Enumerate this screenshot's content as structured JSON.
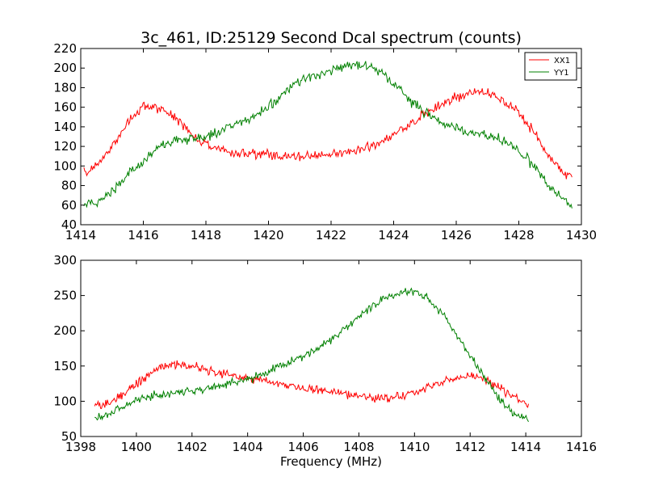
{
  "chart_data": [
    {
      "type": "line",
      "title": "3c_461, ID:25129 Second Dcal spectrum (counts)",
      "xlabel": "",
      "ylabel": "",
      "xlim": [
        1414,
        1430
      ],
      "ylim": [
        40,
        220
      ],
      "xticks": [
        1414,
        1416,
        1418,
        1420,
        1422,
        1424,
        1426,
        1428,
        1430
      ],
      "yticks": [
        40,
        60,
        80,
        100,
        120,
        140,
        160,
        180,
        200,
        220
      ],
      "x_range": [
        1414.1,
        1429.7
      ],
      "noise": 5,
      "legend": "top-right",
      "grid": false,
      "series": [
        {
          "name": "XX1",
          "color": "#ff0000",
          "points": [
            [
              1414.1,
              93
            ],
            [
              1414.6,
              103
            ],
            [
              1415.0,
              120
            ],
            [
              1415.5,
              145
            ],
            [
              1416.0,
              160
            ],
            [
              1416.3,
              162
            ],
            [
              1416.8,
              155
            ],
            [
              1417.3,
              140
            ],
            [
              1417.8,
              125
            ],
            [
              1418.3,
              117
            ],
            [
              1419.0,
              113
            ],
            [
              1420.0,
              112
            ],
            [
              1420.5,
              108
            ],
            [
              1421.0,
              110
            ],
            [
              1422.0,
              112
            ],
            [
              1422.8,
              115
            ],
            [
              1423.5,
              122
            ],
            [
              1424.0,
              132
            ],
            [
              1424.5,
              143
            ],
            [
              1425.0,
              153
            ],
            [
              1425.5,
              163
            ],
            [
              1426.0,
              170
            ],
            [
              1426.5,
              175
            ],
            [
              1427.0,
              175
            ],
            [
              1427.5,
              168
            ],
            [
              1428.0,
              155
            ],
            [
              1428.5,
              133
            ],
            [
              1429.0,
              108
            ],
            [
              1429.5,
              93
            ],
            [
              1429.7,
              92
            ]
          ]
        },
        {
          "name": "YY1",
          "color": "#008000",
          "points": [
            [
              1414.1,
              60
            ],
            [
              1414.5,
              63
            ],
            [
              1415.0,
              75
            ],
            [
              1415.5,
              92
            ],
            [
              1416.0,
              105
            ],
            [
              1416.5,
              118
            ],
            [
              1417.0,
              126
            ],
            [
              1417.5,
              128
            ],
            [
              1418.0,
              130
            ],
            [
              1418.5,
              136
            ],
            [
              1419.0,
              143
            ],
            [
              1419.5,
              150
            ],
            [
              1420.0,
              160
            ],
            [
              1420.5,
              175
            ],
            [
              1421.0,
              187
            ],
            [
              1421.5,
              193
            ],
            [
              1422.0,
              198
            ],
            [
              1422.5,
              203
            ],
            [
              1423.0,
              203
            ],
            [
              1423.5,
              198
            ],
            [
              1424.0,
              185
            ],
            [
              1424.5,
              168
            ],
            [
              1425.0,
              155
            ],
            [
              1425.5,
              145
            ],
            [
              1426.0,
              138
            ],
            [
              1426.5,
              133
            ],
            [
              1427.0,
              131
            ],
            [
              1427.5,
              126
            ],
            [
              1428.0,
              115
            ],
            [
              1428.5,
              100
            ],
            [
              1429.0,
              78
            ],
            [
              1429.7,
              58
            ]
          ]
        }
      ]
    },
    {
      "type": "line",
      "title": "",
      "xlabel": "Frequency (MHz)",
      "ylabel": "",
      "xlim": [
        1398,
        1416
      ],
      "ylim": [
        50,
        300
      ],
      "xticks": [
        1398,
        1400,
        1402,
        1404,
        1406,
        1408,
        1410,
        1412,
        1414,
        1416
      ],
      "yticks": [
        50,
        100,
        150,
        200,
        250,
        300
      ],
      "x_range": [
        1398.5,
        1414.1
      ],
      "noise": 6,
      "legend": "none",
      "grid": false,
      "series": [
        {
          "name": "",
          "color": "#ff0000",
          "points": [
            [
              1398.5,
              95
            ],
            [
              1399.0,
              97
            ],
            [
              1399.5,
              110
            ],
            [
              1400.0,
              125
            ],
            [
              1400.5,
              140
            ],
            [
              1401.0,
              150
            ],
            [
              1401.5,
              152
            ],
            [
              1402.0,
              150
            ],
            [
              1402.5,
              144
            ],
            [
              1403.0,
              140
            ],
            [
              1403.5,
              137
            ],
            [
              1404.0,
              133
            ],
            [
              1404.5,
              130
            ],
            [
              1405.0,
              125
            ],
            [
              1405.5,
              122
            ],
            [
              1406.0,
              118
            ],
            [
              1407.0,
              113
            ],
            [
              1408.0,
              107
            ],
            [
              1409.0,
              103
            ],
            [
              1409.5,
              107
            ],
            [
              1410.0,
              113
            ],
            [
              1410.5,
              120
            ],
            [
              1411.0,
              127
            ],
            [
              1411.5,
              133
            ],
            [
              1412.0,
              135
            ],
            [
              1412.5,
              133
            ],
            [
              1413.0,
              123
            ],
            [
              1413.5,
              107
            ],
            [
              1414.1,
              95
            ]
          ]
        },
        {
          "name": "",
          "color": "#008000",
          "points": [
            [
              1398.5,
              75
            ],
            [
              1399.0,
              82
            ],
            [
              1399.5,
              92
            ],
            [
              1400.0,
              102
            ],
            [
              1400.5,
              108
            ],
            [
              1401.0,
              110
            ],
            [
              1402.0,
              115
            ],
            [
              1403.0,
              122
            ],
            [
              1404.0,
              132
            ],
            [
              1404.5,
              137
            ],
            [
              1405.0,
              147
            ],
            [
              1405.5,
              155
            ],
            [
              1406.0,
              163
            ],
            [
              1406.5,
              175
            ],
            [
              1407.0,
              188
            ],
            [
              1407.5,
              203
            ],
            [
              1408.0,
              220
            ],
            [
              1408.5,
              235
            ],
            [
              1409.0,
              247
            ],
            [
              1409.5,
              253
            ],
            [
              1410.0,
              255
            ],
            [
              1410.5,
              245
            ],
            [
              1411.0,
              225
            ],
            [
              1411.5,
              195
            ],
            [
              1412.0,
              165
            ],
            [
              1412.5,
              135
            ],
            [
              1413.0,
              105
            ],
            [
              1413.5,
              85
            ],
            [
              1414.1,
              73
            ]
          ]
        }
      ]
    }
  ]
}
